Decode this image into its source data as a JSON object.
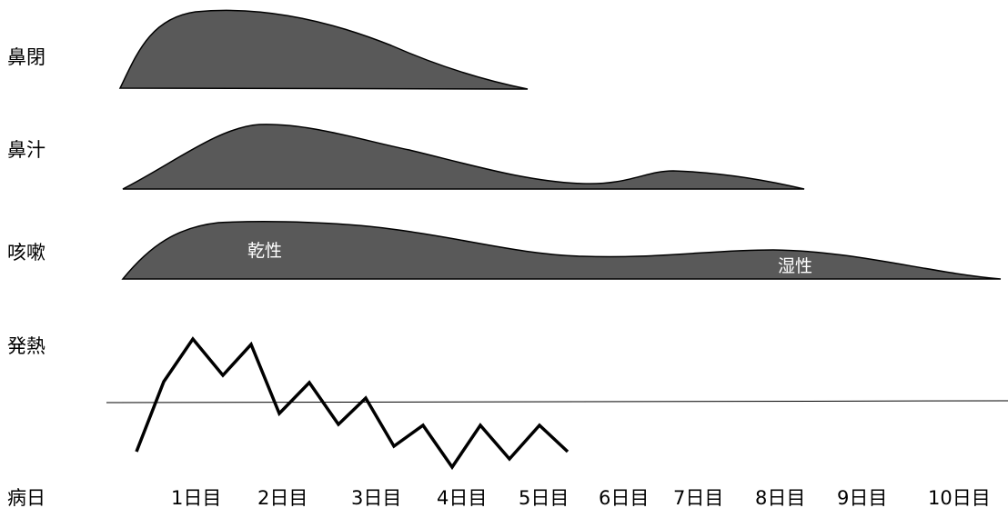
{
  "row_labels": {
    "congestion": "鼻閉",
    "rhinorrhea": "鼻汁",
    "cough": "咳嗽",
    "fever": "発熱",
    "day_axis": "病日"
  },
  "cough_labels": {
    "dry": "乾性",
    "wet": "湿性"
  },
  "day_labels": [
    "1日目",
    "2日目",
    "3日目",
    "4日目",
    "5日目",
    "6日目",
    "7日目",
    "8日目",
    "9日目",
    "10日目"
  ],
  "colors": {
    "hump_fill": "#595959",
    "line": "#000000",
    "background": "#ffffff"
  }
}
